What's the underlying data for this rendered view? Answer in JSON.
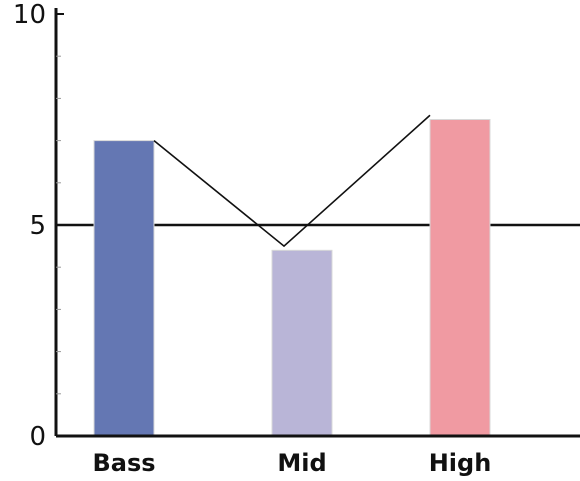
{
  "chart_data": {
    "type": "bar",
    "categories": [
      "Bass",
      "Mid",
      "High"
    ],
    "values": [
      7.0,
      4.4,
      7.5
    ],
    "bar_colors": [
      "#6477b3",
      "#b9b5d7",
      "#f09aa2"
    ],
    "line": {
      "type": "line",
      "values": [
        7.0,
        4.5,
        7.6
      ],
      "color": "#111111"
    },
    "reference_line": {
      "value": 5,
      "color": "#111111"
    },
    "ylim": [
      0,
      10
    ],
    "y_ticks": [
      0,
      5,
      10
    ],
    "y_tick_labels": [
      "0",
      "5",
      "10"
    ],
    "minor_tick_step": 1,
    "title": "",
    "xlabel": "",
    "ylabel": "",
    "grid": false,
    "legend": "none"
  }
}
